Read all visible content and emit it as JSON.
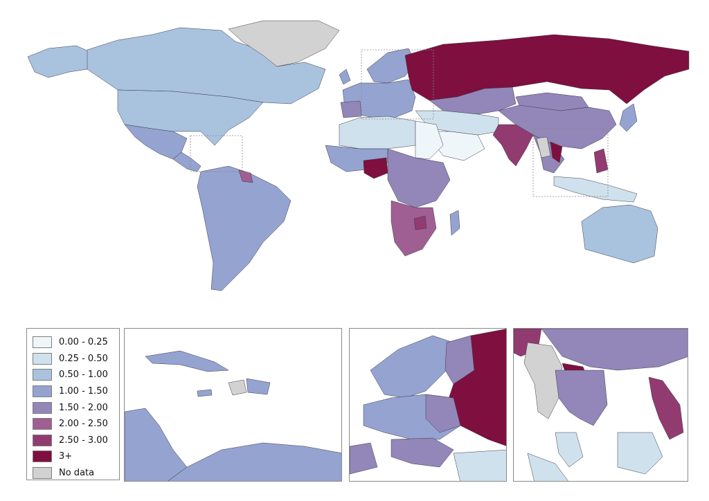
{
  "colors": {
    "0.00 - 0.25": "#eef6f9",
    "0.25 - 0.50": "#cfe1ec",
    "0.50 - 1.00": "#a9c2de",
    "1.00 - 1.50": "#95a3d1",
    "1.50 - 2.00": "#9386b8",
    "2.00 - 2.50": "#a05f92",
    "2.50 - 3.00": "#923b70",
    "3+": "#7f0f3e",
    "No data": "#d2d2d2"
  },
  "legend": {
    "items": [
      {
        "label": "0.00 - 0.25",
        "key": "0.00 - 0.25"
      },
      {
        "label": "0.25 - 0.50",
        "key": "0.25 - 0.50"
      },
      {
        "label": "0.50 - 1.00",
        "key": "0.50 - 1.00"
      },
      {
        "label": "1.00 - 1.50",
        "key": "1.00 - 1.50"
      },
      {
        "label": "1.50 - 2.00",
        "key": "1.50 - 2.00"
      },
      {
        "label": "2.00 - 2.50",
        "key": "2.00 - 2.50"
      },
      {
        "label": "2.50 - 3.00",
        "key": "2.50 - 3.00"
      },
      {
        "label": "3+",
        "key": "3+"
      },
      {
        "label": "No data",
        "key": "No data"
      }
    ]
  },
  "regions": {
    "greenland": "No data",
    "canada": "0.50 - 1.00",
    "usa": "0.50 - 1.00",
    "alaska": "0.50 - 1.00",
    "mexico": "1.00 - 1.50",
    "central_america": "1.00 - 1.50",
    "south_america": "1.00 - 1.50",
    "guyana": "2.00 - 2.50",
    "europe": "1.00 - 1.50",
    "scandinavia": "1.00 - 1.50",
    "russia": "3+",
    "kazakhstan": "1.50 - 2.00",
    "china": "1.50 - 2.00",
    "mongolia": "1.50 - 2.00",
    "north_africa": "0.25 - 0.50",
    "sahara_east": "0.00 - 0.25",
    "arabia": "0.00 - 0.25",
    "middle_east": "0.25 - 0.50",
    "india": "2.50 - 3.00",
    "west_africa": "1.00 - 1.50",
    "nigeria": "3+",
    "central_africa": "1.50 - 2.00",
    "southern_africa": "2.00 - 2.50",
    "zimbabwe": "2.50 - 3.00",
    "madagascar": "1.00 - 1.50",
    "southeast_asia": "1.50 - 2.00",
    "laos": "3+",
    "myanmar": "No data",
    "philippines": "2.50 - 3.00",
    "indonesia": "0.25 - 0.50",
    "australia": "0.50 - 1.00",
    "japan": "1.00 - 1.50",
    "uk": "1.00 - 1.50",
    "iberia": "1.50 - 2.00"
  }
}
